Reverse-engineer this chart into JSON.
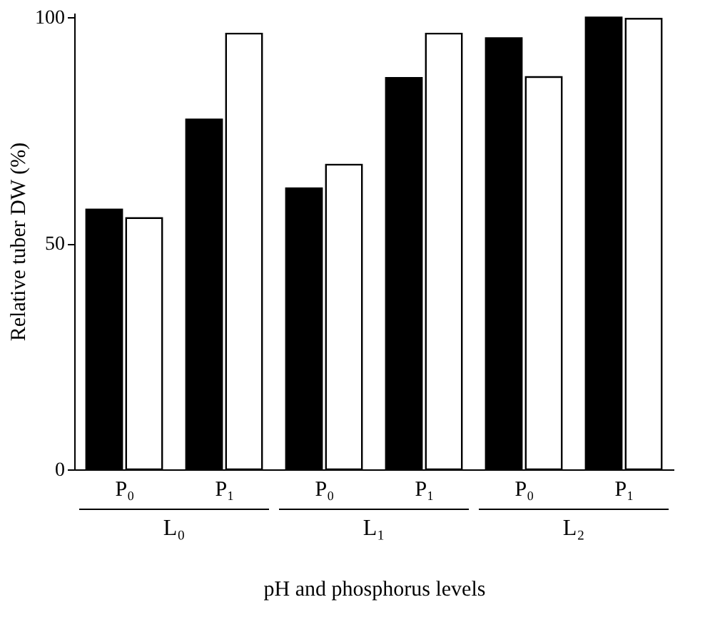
{
  "chart_data": {
    "type": "bar",
    "ylabel": "Relative tuber DW (%)",
    "xlabel": "pH and phosphorus levels",
    "categories": [
      "P₀",
      "P₁",
      "P₀",
      "P₁",
      "P₀",
      "P₁"
    ],
    "series": [
      {
        "color": "#000000",
        "values": [
          57.5,
          77.4,
          62.2,
          86.6,
          95.4,
          100
        ]
      },
      {
        "color": "#ffffff",
        "values": [
          55.6,
          96.4,
          67.4,
          96.4,
          86.8,
          99.7
        ]
      }
    ],
    "annotations": [
      "L₀",
      "L₁",
      "L₂"
    ],
    "ylim": [
      0,
      101
    ],
    "yticks": [
      0,
      50,
      100
    ],
    "grid": false,
    "legend": false
  }
}
